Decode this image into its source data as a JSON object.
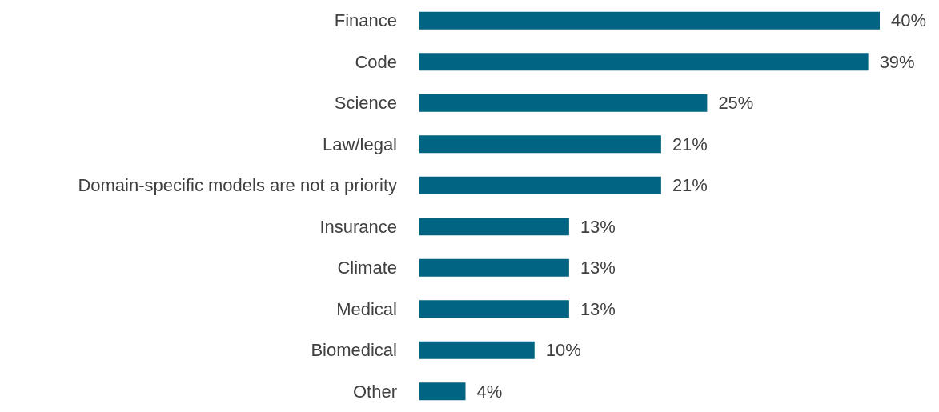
{
  "chart_data": {
    "type": "bar",
    "orientation": "horizontal",
    "categories": [
      "Finance",
      "Code",
      "Science",
      "Law/legal",
      "Domain-specific models are not a priority",
      "Insurance",
      "Climate",
      "Medical",
      "Biomedical",
      "Other"
    ],
    "values": [
      40,
      39,
      25,
      21,
      21,
      13,
      13,
      13,
      10,
      4
    ],
    "value_labels": [
      "40%",
      "39%",
      "25%",
      "21%",
      "21%",
      "13%",
      "13%",
      "13%",
      "10%",
      "4%"
    ],
    "color": "#006482"
  }
}
